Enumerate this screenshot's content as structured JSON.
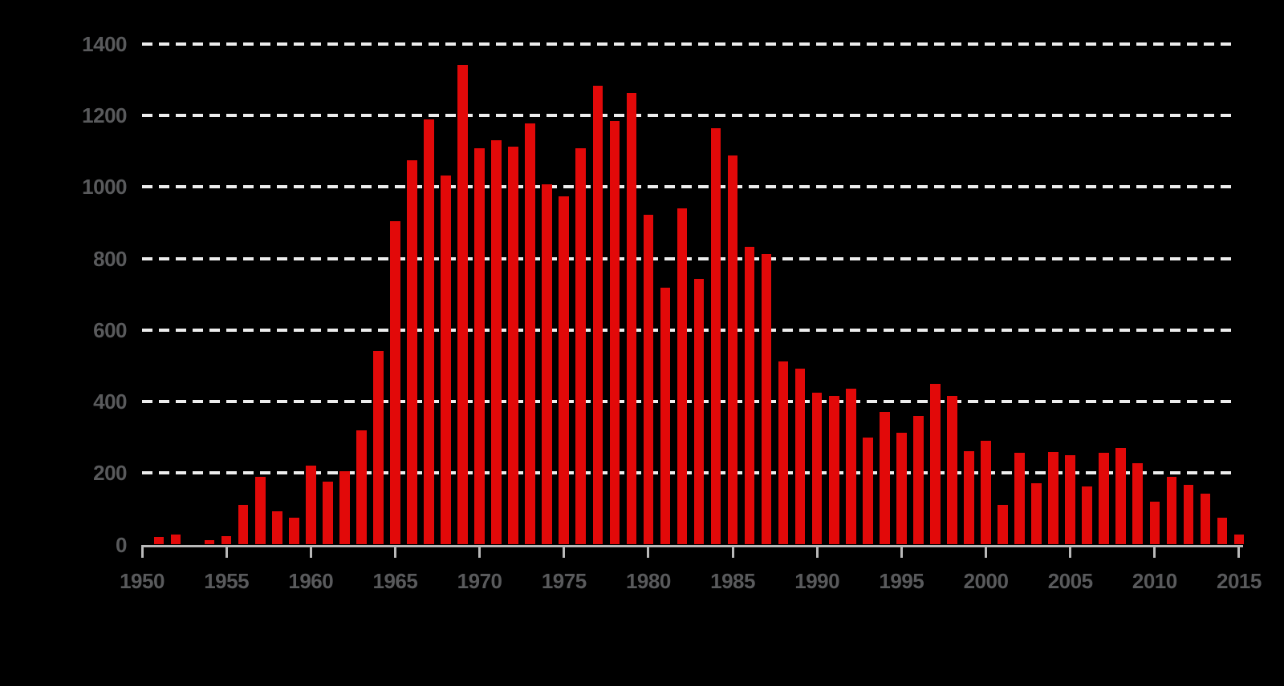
{
  "chart_data": {
    "type": "bar",
    "title": "",
    "xlabel": "",
    "ylabel": "",
    "categories": [
      1950,
      1951,
      1952,
      1953,
      1954,
      1955,
      1956,
      1957,
      1958,
      1959,
      1960,
      1961,
      1962,
      1963,
      1964,
      1965,
      1966,
      1967,
      1968,
      1969,
      1970,
      1971,
      1972,
      1973,
      1974,
      1975,
      1976,
      1977,
      1978,
      1979,
      1980,
      1981,
      1982,
      1983,
      1984,
      1985,
      1986,
      1987,
      1988,
      1989,
      1990,
      1991,
      1992,
      1993,
      1994,
      1995,
      1996,
      1997,
      1998,
      1999,
      2000,
      2001,
      2002,
      2003,
      2004,
      2005,
      2006,
      2007,
      2008,
      2009,
      2010,
      2011,
      2012,
      2013,
      2014,
      2015
    ],
    "values": [
      0,
      22,
      28,
      0,
      13,
      23,
      111,
      190,
      92,
      75,
      221,
      177,
      206,
      320,
      542,
      905,
      1074,
      1189,
      1033,
      1341,
      1109,
      1131,
      1113,
      1179,
      1008,
      975,
      1109,
      1283,
      1184,
      1264,
      923,
      719,
      941,
      744,
      1164,
      1088,
      833,
      813,
      513,
      493,
      425,
      415,
      435,
      300,
      372,
      313,
      360,
      449,
      415,
      262,
      291,
      111,
      257,
      171,
      258,
      250,
      162,
      257,
      271,
      228,
      121,
      190,
      168,
      142,
      74,
      27
    ],
    "ylim": [
      0,
      1400
    ],
    "yticks": [
      0,
      200,
      400,
      600,
      800,
      1000,
      1200,
      1400
    ],
    "xticks": [
      1950,
      1955,
      1960,
      1965,
      1970,
      1975,
      1980,
      1985,
      1990,
      1995,
      2000,
      2005,
      2010,
      2015
    ],
    "grid": "horizontal dashed lines at each y tick, behind bars",
    "legend": "none",
    "colors": {
      "background": "#000000",
      "bar": "#e20909",
      "gridline": "#ededed",
      "axis": "#b9b9b9",
      "tick_label": "#595a5c"
    }
  }
}
